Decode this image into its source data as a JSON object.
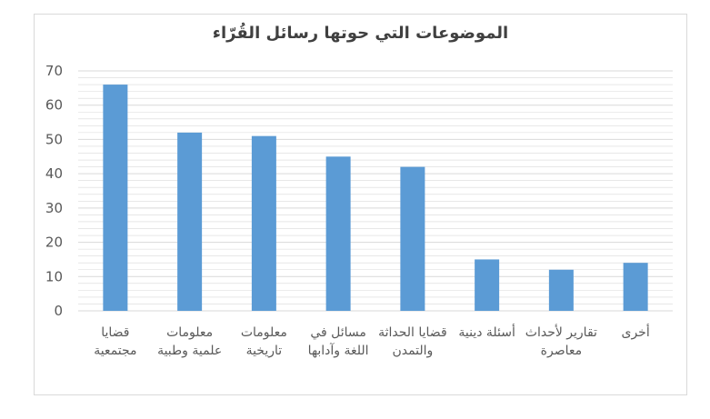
{
  "chart_data": {
    "type": "bar",
    "title": "الموضوعات التي حوتها رسائل القُرّاء",
    "categories": [
      "قضايا مجتمعية",
      "معلومات علمية وطبية",
      "معلومات تاريخية",
      "مسائل في اللغة وآدابها",
      "قضايا الحداثة والتمدن",
      "أسئلة دينية",
      "تقارير لأحداث معاصرة",
      "أخرى"
    ],
    "values": [
      66,
      52,
      51,
      45,
      42,
      15,
      12,
      14
    ],
    "ylim": [
      0,
      70
    ],
    "yticks": [
      0,
      10,
      20,
      30,
      40,
      50,
      60,
      70
    ],
    "xlabel": "",
    "ylabel": "",
    "grid": true,
    "legend": "none",
    "bar_color": "#5b9bd5",
    "grid_color": "#d9d9d9"
  }
}
